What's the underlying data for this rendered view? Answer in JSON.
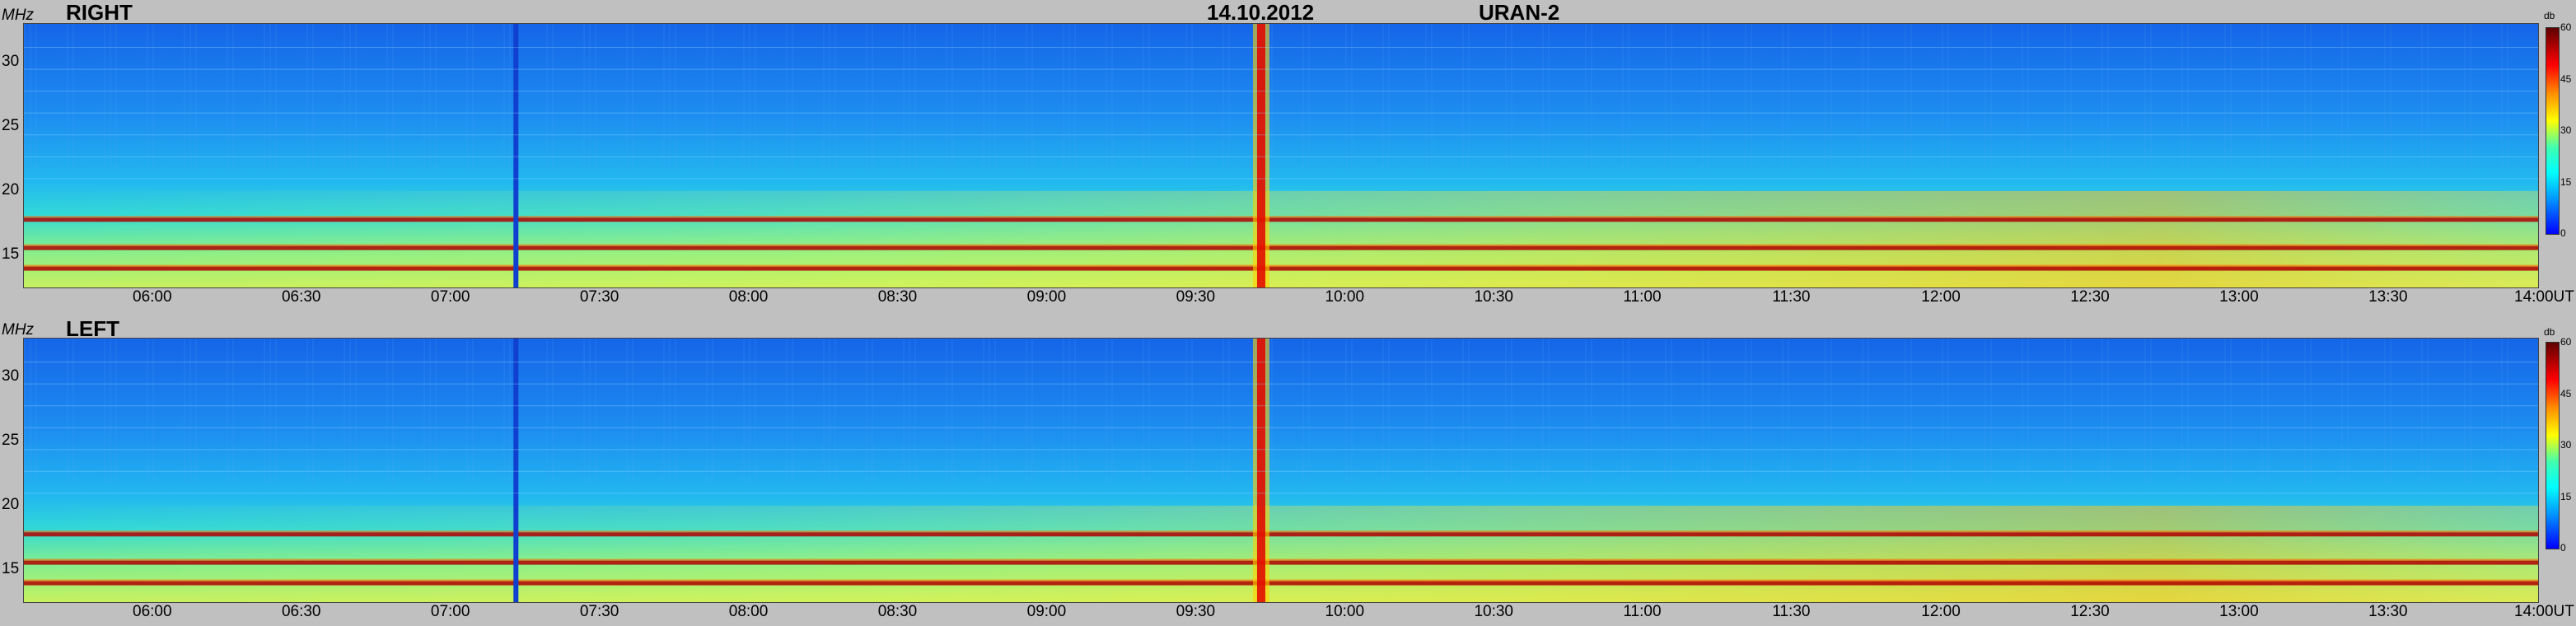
{
  "header": {
    "date": "14.10.2012",
    "instrument": "URAN-2"
  },
  "panels": [
    {
      "label": "RIGHT",
      "unit": "MHz"
    },
    {
      "label": "LEFT",
      "unit": "MHz"
    }
  ],
  "colorbar": {
    "unit": "db",
    "ticks": [
      "60",
      "45",
      "30",
      "15",
      "0"
    ]
  },
  "chart_data": {
    "type": "heatmap",
    "title": "14.10.2012 URAN-2",
    "xlabel": "UT",
    "ylabel": "MHz",
    "x_ticks": [
      "06:00",
      "06:30",
      "07:00",
      "07:30",
      "08:00",
      "08:30",
      "09:00",
      "09:30",
      "10:00",
      "10:30",
      "11:00",
      "11:30",
      "12:00",
      "12:30",
      "13:00",
      "13:30",
      "14:00"
    ],
    "y_ticks": [
      30,
      25,
      20,
      15
    ],
    "ylim": [
      12.5,
      33
    ],
    "color_range_db": [
      0,
      60
    ],
    "series": [
      {
        "name": "RIGHT",
        "panel": 1
      },
      {
        "name": "LEFT",
        "panel": 2
      }
    ],
    "features": {
      "rfi_lines_MHz": [
        17.8,
        15.6,
        14.0
      ],
      "vertical_interference_UT": "09:43",
      "scan_gap_UT": "07:13"
    }
  }
}
